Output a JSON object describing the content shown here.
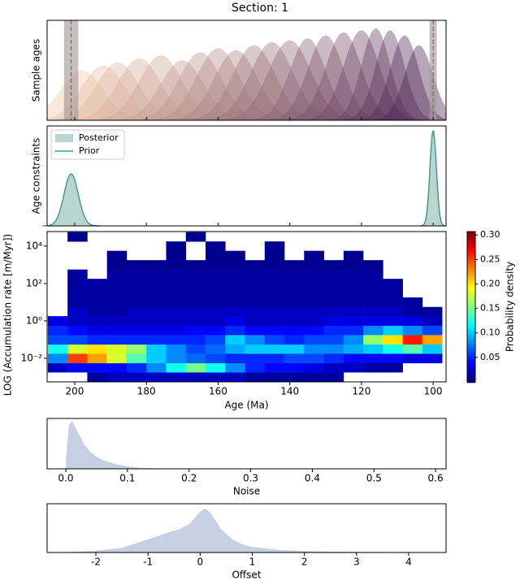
{
  "title": "Section: 1",
  "chart_data": [
    {
      "type": "ridge",
      "ylabel": "Sample ages",
      "xlim": [
        207.7,
        96.4
      ],
      "ylim": [
        0,
        1
      ],
      "samples": {
        "ages": [
          198,
          192,
          188,
          182,
          176,
          170,
          165,
          160,
          155,
          150,
          145,
          140,
          135,
          130,
          125,
          120,
          116,
          112,
          108,
          104
        ],
        "heights": [
          0.5,
          0.55,
          0.58,
          0.62,
          0.65,
          0.6,
          0.68,
          0.72,
          0.7,
          0.75,
          0.78,
          0.8,
          0.82,
          0.85,
          0.88,
          0.9,
          0.92,
          0.9,
          0.85,
          0.75
        ],
        "spreads": [
          6,
          6,
          6,
          6,
          6,
          6,
          6,
          6,
          6,
          6,
          6,
          6,
          5,
          5,
          5,
          5,
          4,
          4,
          4,
          4
        ]
      },
      "colors": [
        "#f0c8a8",
        "#4a2050"
      ],
      "constraints": [
        201,
        100
      ],
      "constraint_spreads": [
        2,
        1
      ],
      "constraint_color": "#a89a9a"
    },
    {
      "type": "constraints",
      "ylabel": "Age constraints",
      "xlim": [
        207.7,
        96.4
      ],
      "ylim": [
        0,
        1
      ],
      "ages": [
        201,
        100
      ],
      "spreads": [
        2,
        0.9
      ],
      "legend": "upper left",
      "series": [
        {
          "name": "Posterior",
          "color": "#b8d6cf",
          "values": [
            0.52,
            0.95
          ]
        },
        {
          "name": "Prior",
          "color": "#4c9a88",
          "values": [
            0.52,
            0.95
          ]
        }
      ]
    },
    {
      "type": "heatmap",
      "xlabel": "Age (Ma)",
      "ylabel": "LOG (Accumulation rate [m/Myr])",
      "xlim": [
        207.7,
        96.4
      ],
      "xticks": [
        200,
        180,
        160,
        140,
        120,
        100
      ],
      "ylim": [
        0.00055,
        60000
      ],
      "log_y": true,
      "yticks": [
        {
          "value": 0.01,
          "label": "10⁻²"
        },
        {
          "value": 1,
          "label": "10⁰"
        },
        {
          "value": 100,
          "label": "10²"
        },
        {
          "value": 10000,
          "label": "10⁴"
        }
      ],
      "xbins": [
        207.5,
        202,
        196.5,
        191,
        185.5,
        180,
        174.5,
        169,
        163.5,
        158,
        152.5,
        147,
        141.5,
        136,
        130.5,
        125,
        119.5,
        114,
        108.5,
        103,
        97.5
      ],
      "ybins": [
        0.00056,
        0.0018,
        0.0056,
        0.018,
        0.056,
        0.18,
        0.56,
        1.8,
        5.6,
        18,
        56,
        178,
        562,
        1778,
        5623,
        17783,
        56234
      ],
      "z": [
        [
          null,
          null,
          0.01,
          0.02,
          0.02,
          0.02,
          0.02,
          0.02,
          0.02,
          0.02,
          0.01,
          0.01,
          0.01,
          0.01,
          0.01,
          null,
          null,
          null,
          null,
          null
        ],
        [
          0.02,
          0.04,
          0.04,
          0.04,
          0.05,
          0.08,
          0.12,
          0.15,
          0.12,
          0.08,
          0.05,
          0.04,
          0.04,
          0.03,
          0.02,
          0.02,
          0.01,
          0.01,
          null,
          null
        ],
        [
          0.08,
          0.25,
          0.22,
          0.18,
          0.14,
          0.1,
          0.08,
          0.07,
          0.06,
          0.05,
          0.05,
          0.05,
          0.06,
          0.06,
          0.05,
          0.04,
          0.04,
          0.04,
          0.03,
          0.03
        ],
        [
          0.12,
          0.18,
          0.2,
          0.18,
          0.16,
          0.1,
          0.08,
          0.06,
          0.07,
          0.09,
          0.1,
          0.1,
          0.1,
          0.08,
          0.08,
          0.09,
          0.1,
          0.12,
          0.14,
          0.1
        ],
        [
          0.06,
          0.06,
          0.05,
          0.05,
          0.05,
          0.05,
          0.05,
          0.05,
          0.06,
          0.1,
          0.08,
          0.06,
          0.05,
          0.06,
          0.06,
          0.08,
          0.16,
          0.2,
          0.26,
          0.22
        ],
        [
          0.05,
          0.04,
          0.03,
          0.03,
          0.03,
          0.03,
          0.03,
          0.04,
          0.04,
          0.05,
          0.04,
          0.04,
          0.04,
          0.04,
          0.05,
          0.05,
          0.08,
          0.1,
          0.08,
          0.06
        ],
        [
          0.03,
          0.02,
          0.02,
          0.02,
          0.02,
          0.02,
          0.02,
          0.02,
          0.02,
          0.03,
          0.02,
          0.02,
          0.02,
          0.02,
          0.03,
          0.03,
          0.03,
          0.03,
          0.03,
          0.02
        ],
        [
          null,
          0.02,
          0.01,
          0.01,
          0.02,
          0.02,
          0.02,
          0.02,
          0.02,
          0.02,
          0.02,
          0.02,
          0.02,
          0.02,
          0.02,
          0.02,
          0.02,
          0.02,
          0.01,
          0.01
        ],
        [
          null,
          0.01,
          0.01,
          0.01,
          0.01,
          0.01,
          0.01,
          0.01,
          0.01,
          0.01,
          0.01,
          0.01,
          0.01,
          0.01,
          0.01,
          0.01,
          0.01,
          0.01,
          0.01,
          null
        ],
        [
          null,
          0.01,
          0.01,
          0.01,
          0.01,
          0.01,
          0.01,
          0.01,
          0.01,
          0.01,
          0.01,
          0.01,
          0.01,
          0.01,
          0.01,
          0.01,
          0.01,
          0.01,
          null,
          null
        ],
        [
          null,
          0.01,
          0.01,
          0.01,
          0.01,
          0.01,
          0.01,
          0.01,
          0.01,
          0.01,
          0.01,
          0.01,
          0.01,
          0.01,
          0.01,
          0.01,
          0.01,
          0.01,
          null,
          null
        ],
        [
          null,
          0.01,
          null,
          0.01,
          0.01,
          0.01,
          0.01,
          0.01,
          0.01,
          0.01,
          0.01,
          0.01,
          0.01,
          0.01,
          0.01,
          0.01,
          0.01,
          null,
          null,
          null
        ],
        [
          null,
          null,
          null,
          0.005,
          0.005,
          0.005,
          0.005,
          0.005,
          0.005,
          0.005,
          0.005,
          0.005,
          0.005,
          0.005,
          0.005,
          0.005,
          0.005,
          null,
          null,
          null
        ],
        [
          null,
          null,
          null,
          0.005,
          null,
          null,
          0.005,
          null,
          0.005,
          0.005,
          null,
          0.005,
          null,
          0.005,
          null,
          0.005,
          null,
          null,
          null,
          null
        ],
        [
          null,
          null,
          null,
          null,
          null,
          null,
          0.005,
          null,
          0.005,
          null,
          null,
          0.005,
          null,
          null,
          null,
          null,
          null,
          null,
          null,
          null
        ],
        [
          null,
          0.005,
          null,
          null,
          null,
          null,
          null,
          0.005,
          null,
          null,
          null,
          null,
          null,
          null,
          null,
          null,
          null,
          null,
          null,
          null
        ]
      ],
      "colormap": "jet",
      "clim": [
        0,
        0.307
      ],
      "clabel": "Probability density",
      "cticks": [
        0.05,
        {
          "value": 0.1,
          "label": "0.10"
        },
        0.15,
        {
          "value": 0.2,
          "label": "0.20"
        },
        0.25,
        {
          "value": 0.3,
          "label": "0.30"
        }
      ]
    },
    {
      "type": "density",
      "xlabel": "Noise",
      "color": "#c5d0e3",
      "xlim": [
        -0.0303,
        0.617
      ],
      "ylim": [
        0,
        1.05
      ],
      "xticks": [
        {
          "value": 0,
          "label": "0.0"
        },
        0.1,
        0.2,
        0.3,
        0.4,
        0.5,
        0.6
      ],
      "x": [
        0,
        0.005,
        0.01,
        0.02,
        0.03,
        0.04,
        0.05,
        0.06,
        0.08,
        0.1,
        0.12,
        0.15,
        0.2
      ],
      "values": [
        0.2,
        0.9,
        1.0,
        0.75,
        0.5,
        0.35,
        0.25,
        0.18,
        0.1,
        0.05,
        0.02,
        0.01,
        0
      ]
    },
    {
      "type": "density",
      "xlabel": "Offset",
      "color": "#c5d0e3",
      "xlim": [
        -2.935,
        4.717
      ],
      "ylim": [
        0,
        1.05
      ],
      "xticks": [
        -2,
        -1,
        0,
        1,
        2,
        3,
        4
      ],
      "x": [
        -2.9,
        -2.5,
        -2,
        -1.5,
        -1,
        -0.7,
        -0.4,
        -0.2,
        0,
        0.1,
        0.2,
        0.4,
        0.6,
        0.8,
        1,
        1.5,
        2,
        2.5,
        3,
        3.5,
        4,
        4.7
      ],
      "values": [
        0,
        0.01,
        0.04,
        0.1,
        0.28,
        0.4,
        0.5,
        0.62,
        0.88,
        0.95,
        0.85,
        0.5,
        0.3,
        0.18,
        0.12,
        0.06,
        0.03,
        0.02,
        0.015,
        0.01,
        0.005,
        0
      ]
    }
  ]
}
